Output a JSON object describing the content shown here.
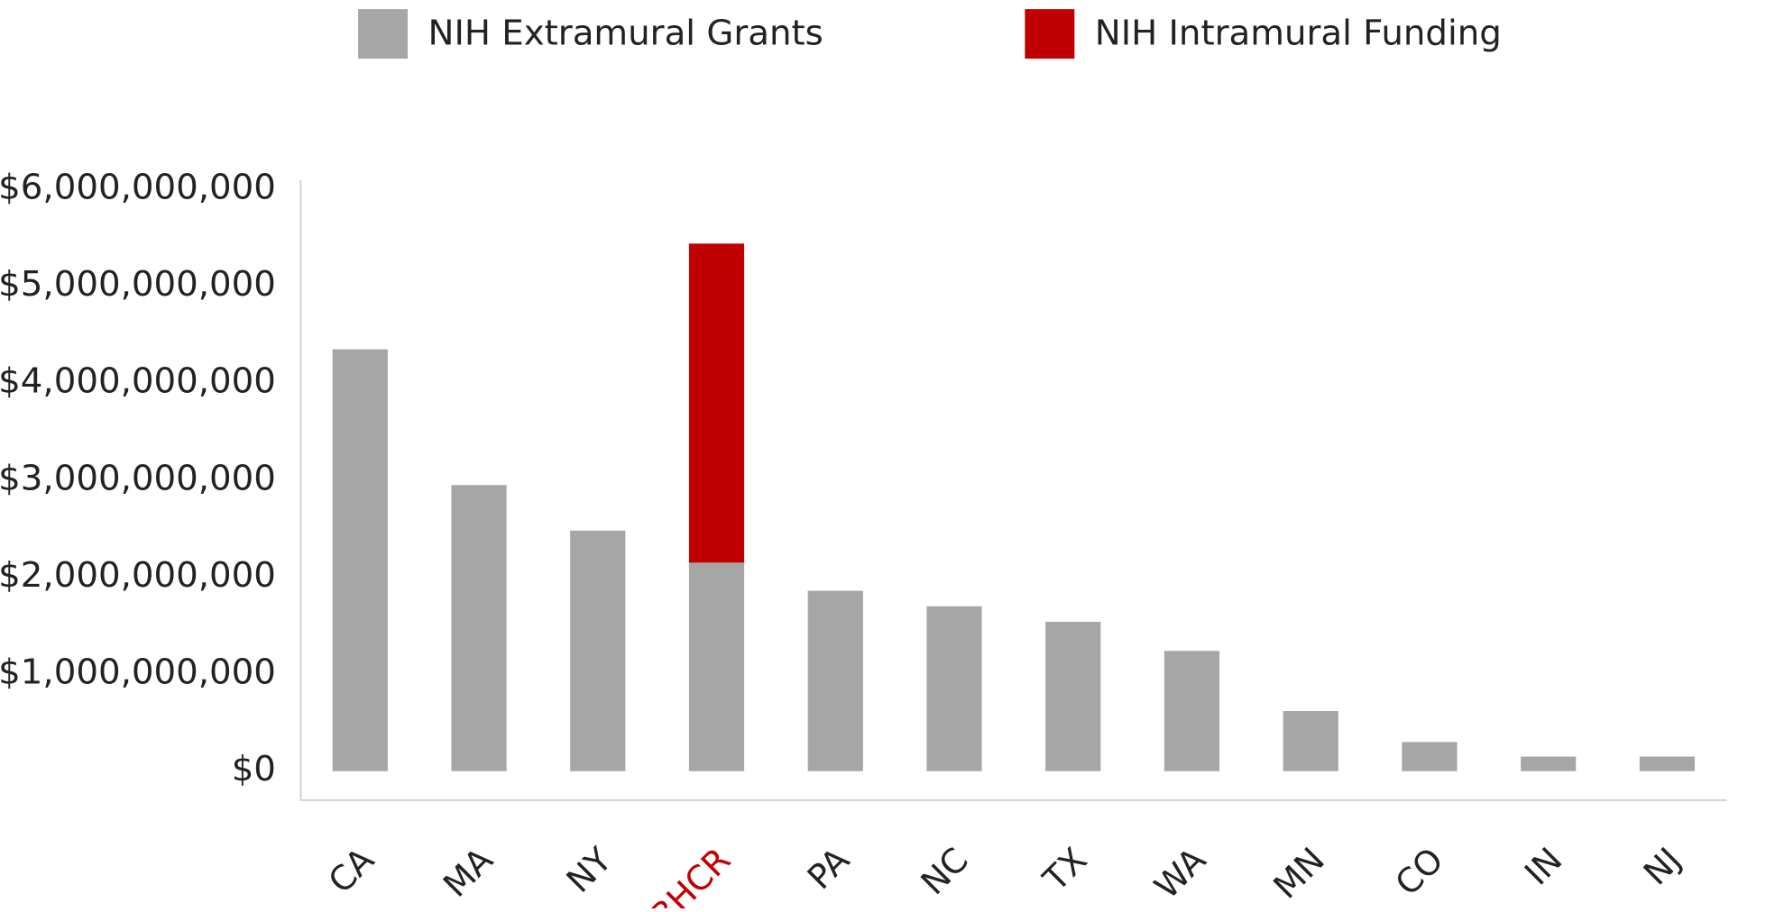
{
  "chart_data": {
    "type": "stacked_bar",
    "categories": [
      "CA",
      "MA",
      "NY",
      "BHCR",
      "PA",
      "NC",
      "TX",
      "WA",
      "MN",
      "CO",
      "IN",
      "NJ"
    ],
    "category_label_colors": [
      "#222222",
      "#222222",
      "#222222",
      "#c00000",
      "#222222",
      "#222222",
      "#222222",
      "#222222",
      "#222222",
      "#222222",
      "#222222",
      "#222222"
    ],
    "series": [
      {
        "name": "NIH Extramural Grants",
        "color": "#a6a6a6",
        "values": [
          4350000000,
          2950000000,
          2480000000,
          2150000000,
          1860000000,
          1700000000,
          1540000000,
          1240000000,
          620000000,
          300000000,
          150000000,
          150000000
        ]
      },
      {
        "name": "NIH Intramural Funding",
        "color": "#c00000",
        "values": [
          null,
          null,
          null,
          3290000000,
          null,
          null,
          null,
          null,
          null,
          null,
          null,
          null
        ]
      }
    ],
    "ylim": [
      -300000000,
      6500000000
    ],
    "yticks": [
      {
        "value": 0,
        "label": "$0"
      },
      {
        "value": 1000000000,
        "label": "$1,000,000,000"
      },
      {
        "value": 2000000000,
        "label": "$2,000,000,000"
      },
      {
        "value": 3000000000,
        "label": "$3,000,000,000"
      },
      {
        "value": 4000000000,
        "label": "$4,000,000,000"
      },
      {
        "value": 5000000000,
        "label": "$5,000,000,000"
      },
      {
        "value": 6000000000,
        "label": "$6,000,000,000"
      }
    ],
    "grid": false,
    "legend": "top"
  }
}
